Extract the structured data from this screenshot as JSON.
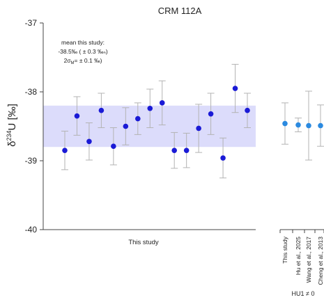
{
  "chart_data": {
    "type": "scatter",
    "title": "CRM 112A",
    "ylabel_main": "δ",
    "ylabel_sup": "234",
    "ylabel_rest": "U [‰]",
    "yticks": [
      "-37",
      "-38",
      "-39",
      "-40"
    ],
    "ytick_values": [
      -37,
      -38,
      -39,
      -40
    ],
    "ylim": [
      -40,
      -37
    ],
    "annotation": {
      "line1": "mean this study:",
      "line2": "-38.5‰ ( ± 0.3 ‰ₙ)",
      "line3_main": "2σ",
      "line3_sub": "M",
      "line3_rest": "=  ± 0.1 ‰)"
    },
    "band": {
      "low": -38.8,
      "high": -38.2,
      "color": "#dcdcfb"
    },
    "point_color": "#1a1ad6",
    "error_color": "#b3b3b3",
    "this_study": {
      "label": "This study",
      "values": [
        -38.85,
        -38.35,
        -38.72,
        -38.27,
        -38.79,
        -38.5,
        -38.39,
        -38.24,
        -38.16,
        -38.85,
        -38.85,
        -38.53,
        -38.32,
        -38.96,
        -37.95,
        -38.27
      ],
      "errors": [
        0.28,
        0.28,
        0.27,
        0.25,
        0.27,
        0.27,
        0.23,
        0.28,
        0.32,
        0.26,
        0.25,
        0.35,
        0.3,
        0.29,
        0.35,
        0.25
      ]
    },
    "comparison": {
      "categories": [
        "This study",
        "Hu et al., 2025",
        "Wang et al., 2017",
        "Cheng et al., 2013"
      ],
      "values": [
        -38.46,
        -38.48,
        -38.49,
        -38.49
      ],
      "errors": [
        0.3,
        0.1,
        0.5,
        0.3
      ],
      "point_color": "#2b8ae0",
      "footnote": "HU1 ≠ 0"
    }
  }
}
